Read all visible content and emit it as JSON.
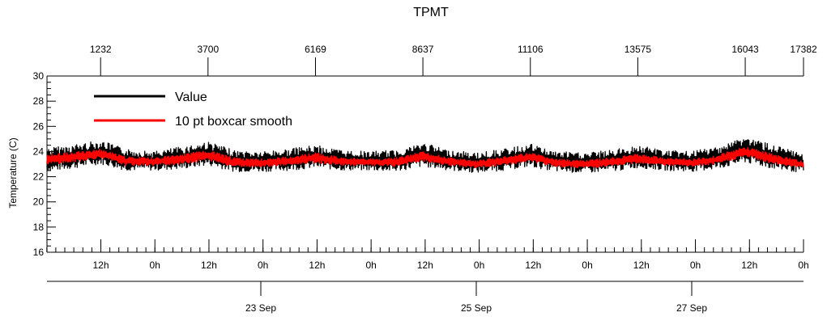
{
  "chart_data": {
    "type": "line",
    "title": "TPMT",
    "ylabel": "Temperature (C)",
    "ylim": [
      16,
      30
    ],
    "yticks": [
      "16",
      "18",
      "20",
      "22",
      "24",
      "26",
      "28",
      "30"
    ],
    "top_axis": {
      "range": [
        0,
        17382
      ],
      "ticks": [
        "1232",
        "3700",
        "6169",
        "8637",
        "11106",
        "13575",
        "16043",
        "17382"
      ]
    },
    "time_axis": {
      "hour_ticks": [
        "12h",
        "0h",
        "12h",
        "0h",
        "12h",
        "0h",
        "12h",
        "0h",
        "12h",
        "0h",
        "12h",
        "0h",
        "12h",
        "0h"
      ],
      "date_ticks": [
        "23 Sep",
        "25 Sep",
        "27 Sep"
      ]
    },
    "legend": {
      "placement": "top-left",
      "entries": [
        {
          "label": "Value",
          "color": "#000000"
        },
        {
          "label": "10 pt boxcar smooth",
          "color": "#ff0000"
        }
      ]
    },
    "series": [
      {
        "name": "Value",
        "color": "#000000",
        "x": [
          0,
          500,
          1232,
          1800,
          2466,
          3100,
          3700,
          4300,
          4935,
          5550,
          6169,
          6800,
          7403,
          8000,
          8637,
          9250,
          9871,
          10500,
          11106,
          11700,
          12340,
          12950,
          13575,
          14200,
          14809,
          15400,
          16043,
          16700,
          17382
        ],
        "low": [
          22.4,
          22.6,
          23.0,
          22.5,
          22.5,
          22.6,
          22.9,
          22.4,
          22.4,
          22.5,
          22.7,
          22.5,
          22.5,
          22.4,
          22.8,
          22.5,
          22.3,
          22.5,
          22.8,
          22.4,
          22.3,
          22.4,
          22.7,
          22.5,
          22.4,
          22.6,
          23.1,
          22.6,
          22.3
        ],
        "high": [
          24.3,
          24.5,
          24.9,
          24.2,
          24.0,
          24.4,
          24.8,
          24.1,
          24.0,
          24.2,
          24.5,
          24.1,
          24.0,
          24.1,
          24.7,
          24.1,
          23.9,
          24.2,
          24.6,
          24.0,
          23.9,
          24.1,
          24.5,
          24.1,
          24.0,
          24.4,
          25.2,
          24.5,
          23.8
        ]
      },
      {
        "name": "10 pt boxcar smooth",
        "color": "#ff0000",
        "x": [
          0,
          500,
          1232,
          1800,
          2466,
          3100,
          3700,
          4300,
          4935,
          5550,
          6169,
          6800,
          7403,
          8000,
          8637,
          9250,
          9871,
          10500,
          11106,
          11700,
          12340,
          12950,
          13575,
          14200,
          14809,
          15400,
          16043,
          16700,
          17382
        ],
        "low": [
          23.0,
          23.1,
          23.5,
          22.9,
          22.9,
          23.0,
          23.3,
          22.8,
          22.8,
          22.9,
          23.1,
          22.9,
          22.9,
          22.8,
          23.2,
          22.9,
          22.7,
          22.9,
          23.2,
          22.8,
          22.7,
          22.8,
          23.1,
          22.9,
          22.8,
          23.0,
          23.6,
          23.0,
          22.7
        ],
        "high": [
          23.8,
          23.9,
          24.2,
          23.6,
          23.5,
          23.8,
          24.1,
          23.5,
          23.4,
          23.6,
          23.9,
          23.5,
          23.4,
          23.5,
          24.0,
          23.5,
          23.3,
          23.6,
          23.9,
          23.4,
          23.3,
          23.5,
          23.8,
          23.5,
          23.4,
          23.7,
          24.4,
          23.8,
          23.2
        ]
      }
    ],
    "grid": false
  }
}
